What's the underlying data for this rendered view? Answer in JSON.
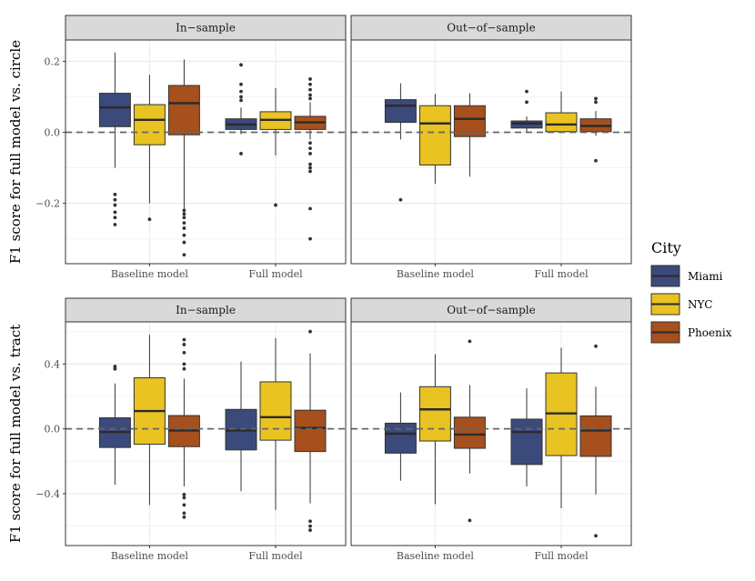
{
  "legend": {
    "title": "City",
    "items": [
      {
        "label": "Miami",
        "color": "#3b4a7a"
      },
      {
        "label": "NYC",
        "color": "#e8c321"
      },
      {
        "label": "Phoenix",
        "color": "#a5501d"
      }
    ]
  },
  "chart_data": [
    {
      "type": "box",
      "row": 0,
      "col": 0,
      "facet_label": "In−sample",
      "ylabel": "F1 score for full model vs. circle",
      "categories": [
        "Baseline model",
        "Full model"
      ],
      "ylim": [
        -0.37,
        0.26
      ],
      "yticks": [
        -0.2,
        0.0,
        0.2
      ],
      "ytick_labels": [
        "−0.2",
        "0.0",
        "0.2"
      ],
      "reference_line": 0,
      "series": [
        {
          "name": "Miami",
          "boxes": [
            {
              "min": -0.1,
              "q1": 0.016,
              "median": 0.07,
              "q3": 0.11,
              "max": 0.225,
              "outliers": [
                -0.175,
                -0.19,
                -0.205,
                -0.225,
                -0.24,
                -0.26
              ]
            },
            {
              "min": -0.005,
              "q1": 0.008,
              "median": 0.022,
              "q3": 0.038,
              "max": 0.07,
              "outliers": [
                0.19,
                0.135,
                0.115,
                0.1,
                0.09,
                -0.06
              ]
            }
          ]
        },
        {
          "name": "NYC",
          "boxes": [
            {
              "min": -0.2,
              "q1": -0.035,
              "median": 0.035,
              "q3": 0.078,
              "max": 0.162,
              "outliers": [
                -0.245
              ]
            },
            {
              "min": -0.065,
              "q1": 0.008,
              "median": 0.035,
              "q3": 0.058,
              "max": 0.125,
              "outliers": [
                -0.205
              ]
            }
          ]
        },
        {
          "name": "Phoenix",
          "boxes": [
            {
              "min": -0.22,
              "q1": -0.007,
              "median": 0.082,
              "q3": 0.132,
              "max": 0.205,
              "outliers": [
                -0.22,
                -0.23,
                -0.24,
                -0.255,
                -0.27,
                -0.29,
                -0.31,
                -0.345
              ]
            },
            {
              "min": -0.02,
              "q1": 0.008,
              "median": 0.028,
              "q3": 0.045,
              "max": 0.085,
              "outliers": [
                0.15,
                0.135,
                0.12,
                0.105,
                0.095,
                -0.03,
                -0.045,
                -0.06,
                -0.09,
                -0.1,
                -0.11,
                -0.215,
                -0.3
              ]
            }
          ]
        }
      ]
    },
    {
      "type": "box",
      "row": 0,
      "col": 1,
      "facet_label": "Out−of−sample",
      "categories": [
        "Baseline model",
        "Full model"
      ],
      "ylim": [
        -0.37,
        0.26
      ],
      "yticks": [
        -0.2,
        0.0,
        0.2
      ],
      "reference_line": 0,
      "series": [
        {
          "name": "Miami",
          "boxes": [
            {
              "min": -0.02,
              "q1": 0.028,
              "median": 0.075,
              "q3": 0.092,
              "max": 0.138,
              "outliers": [
                -0.19
              ]
            },
            {
              "min": 0.0,
              "q1": 0.012,
              "median": 0.025,
              "q3": 0.032,
              "max": 0.045,
              "outliers": [
                0.115,
                0.085
              ]
            }
          ]
        },
        {
          "name": "NYC",
          "boxes": [
            {
              "min": -0.145,
              "q1": -0.092,
              "median": 0.025,
              "q3": 0.075,
              "max": 0.108,
              "outliers": []
            },
            {
              "min": 0.0,
              "q1": 0.002,
              "median": 0.022,
              "q3": 0.055,
              "max": 0.115,
              "outliers": []
            }
          ]
        },
        {
          "name": "Phoenix",
          "boxes": [
            {
              "min": -0.125,
              "q1": -0.012,
              "median": 0.038,
              "q3": 0.075,
              "max": 0.11,
              "outliers": []
            },
            {
              "min": -0.01,
              "q1": 0.002,
              "median": 0.018,
              "q3": 0.038,
              "max": 0.06,
              "outliers": [
                0.095,
                0.085,
                -0.08
              ]
            }
          ]
        }
      ]
    },
    {
      "type": "box",
      "row": 1,
      "col": 0,
      "facet_label": "In−sample",
      "ylabel": "F1 score for full model vs. tract",
      "categories": [
        "Baseline model",
        "Full model"
      ],
      "ylim": [
        -0.72,
        0.66
      ],
      "yticks": [
        -0.4,
        0.0,
        0.4
      ],
      "ytick_labels": [
        "−0.4",
        "0.0",
        "0.4"
      ],
      "reference_line": 0,
      "series": [
        {
          "name": "Miami",
          "boxes": [
            {
              "min": -0.345,
              "q1": -0.115,
              "median": -0.02,
              "q3": 0.068,
              "max": 0.28,
              "outliers": [
                0.385,
                0.37
              ]
            },
            {
              "min": -0.385,
              "q1": -0.13,
              "median": -0.01,
              "q3": 0.12,
              "max": 0.415,
              "outliers": []
            }
          ]
        },
        {
          "name": "NYC",
          "boxes": [
            {
              "min": -0.47,
              "q1": -0.095,
              "median": 0.11,
              "q3": 0.315,
              "max": 0.58,
              "outliers": []
            },
            {
              "min": -0.5,
              "q1": -0.07,
              "median": 0.072,
              "q3": 0.29,
              "max": 0.56,
              "outliers": []
            }
          ]
        },
        {
          "name": "Phoenix",
          "boxes": [
            {
              "min": -0.355,
              "q1": -0.11,
              "median": -0.01,
              "q3": 0.082,
              "max": 0.31,
              "outliers": [
                0.55,
                0.52,
                0.47,
                0.4,
                0.37,
                -0.405,
                -0.425,
                -0.47,
                -0.52,
                -0.545
              ]
            },
            {
              "min": -0.46,
              "q1": -0.14,
              "median": 0.005,
              "q3": 0.115,
              "max": 0.465,
              "outliers": [
                0.6,
                -0.57,
                -0.6,
                -0.625
              ]
            }
          ]
        }
      ]
    },
    {
      "type": "box",
      "row": 1,
      "col": 1,
      "facet_label": "Out−of−sample",
      "categories": [
        "Baseline model",
        "Full model"
      ],
      "ylim": [
        -0.72,
        0.66
      ],
      "yticks": [
        -0.4,
        0.0,
        0.4
      ],
      "reference_line": 0,
      "series": [
        {
          "name": "Miami",
          "boxes": [
            {
              "min": -0.32,
              "q1": -0.15,
              "median": -0.03,
              "q3": 0.035,
              "max": 0.225,
              "outliers": []
            },
            {
              "min": -0.355,
              "q1": -0.22,
              "median": -0.02,
              "q3": 0.06,
              "max": 0.25,
              "outliers": []
            }
          ]
        },
        {
          "name": "NYC",
          "boxes": [
            {
              "min": -0.465,
              "q1": -0.075,
              "median": 0.12,
              "q3": 0.26,
              "max": 0.46,
              "outliers": []
            },
            {
              "min": -0.49,
              "q1": -0.165,
              "median": 0.095,
              "q3": 0.345,
              "max": 0.5,
              "outliers": []
            }
          ]
        },
        {
          "name": "Phoenix",
          "boxes": [
            {
              "min": -0.275,
              "q1": -0.12,
              "median": -0.035,
              "q3": 0.072,
              "max": 0.27,
              "outliers": [
                0.54,
                -0.565
              ]
            },
            {
              "min": -0.405,
              "q1": -0.17,
              "median": -0.01,
              "q3": 0.08,
              "max": 0.26,
              "outliers": [
                0.51,
                -0.66
              ]
            }
          ]
        }
      ]
    }
  ]
}
